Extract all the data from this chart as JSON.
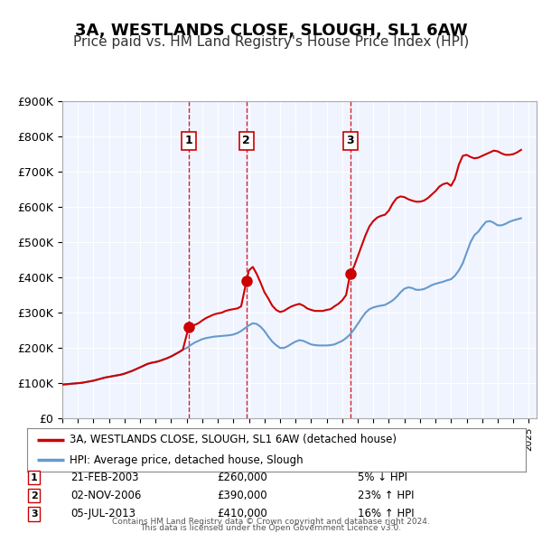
{
  "title": "3A, WESTLANDS CLOSE, SLOUGH, SL1 6AW",
  "subtitle": "Price paid vs. HM Land Registry's House Price Index (HPI)",
  "title_fontsize": 13,
  "subtitle_fontsize": 11,
  "background_color": "#ffffff",
  "plot_bg_color": "#f0f4ff",
  "grid_color": "#ffffff",
  "ylim": [
    0,
    900000
  ],
  "yticks": [
    0,
    100000,
    200000,
    300000,
    400000,
    500000,
    600000,
    700000,
    800000,
    900000
  ],
  "ytick_labels": [
    "£0",
    "£100K",
    "£200K",
    "£300K",
    "£400K",
    "£500K",
    "£600K",
    "£700K",
    "£800K",
    "£900K"
  ],
  "xlim_start": 1995.0,
  "xlim_end": 2025.5,
  "sale_color": "#cc0000",
  "hpi_color": "#6699cc",
  "sale_linewidth": 1.5,
  "hpi_linewidth": 1.5,
  "marker_color": "#cc0000",
  "marker_size": 8,
  "vline_color": "#cc0000",
  "vline_style": "--",
  "purchases": [
    {
      "num": 1,
      "date_label": "21-FEB-2003",
      "year": 2003.13,
      "price": 260000,
      "price_label": "£260,000",
      "pct_label": "5% ↓ HPI"
    },
    {
      "num": 2,
      "date_label": "02-NOV-2006",
      "year": 2006.84,
      "price": 390000,
      "price_label": "£390,000",
      "pct_label": "23% ↑ HPI"
    },
    {
      "num": 3,
      "date_label": "05-JUL-2013",
      "year": 2013.51,
      "price": 410000,
      "price_label": "£410,000",
      "pct_label": "16% ↑ HPI"
    }
  ],
  "legend_line1": "3A, WESTLANDS CLOSE, SLOUGH, SL1 6AW (detached house)",
  "legend_line2": "HPI: Average price, detached house, Slough",
  "footer1": "Contains HM Land Registry data © Crown copyright and database right 2024.",
  "footer2": "This data is licensed under the Open Government Licence v3.0.",
  "hpi_x": [
    1995.0,
    1995.25,
    1995.5,
    1995.75,
    1996.0,
    1996.25,
    1996.5,
    1996.75,
    1997.0,
    1997.25,
    1997.5,
    1997.75,
    1998.0,
    1998.25,
    1998.5,
    1998.75,
    1999.0,
    1999.25,
    1999.5,
    1999.75,
    2000.0,
    2000.25,
    2000.5,
    2000.75,
    2001.0,
    2001.25,
    2001.5,
    2001.75,
    2002.0,
    2002.25,
    2002.5,
    2002.75,
    2003.0,
    2003.25,
    2003.5,
    2003.75,
    2004.0,
    2004.25,
    2004.5,
    2004.75,
    2005.0,
    2005.25,
    2005.5,
    2005.75,
    2006.0,
    2006.25,
    2006.5,
    2006.75,
    2007.0,
    2007.25,
    2007.5,
    2007.75,
    2008.0,
    2008.25,
    2008.5,
    2008.75,
    2009.0,
    2009.25,
    2009.5,
    2009.75,
    2010.0,
    2010.25,
    2010.5,
    2010.75,
    2011.0,
    2011.25,
    2011.5,
    2011.75,
    2012.0,
    2012.25,
    2012.5,
    2012.75,
    2013.0,
    2013.25,
    2013.5,
    2013.75,
    2014.0,
    2014.25,
    2014.5,
    2014.75,
    2015.0,
    2015.25,
    2015.5,
    2015.75,
    2016.0,
    2016.25,
    2016.5,
    2016.75,
    2017.0,
    2017.25,
    2017.5,
    2017.75,
    2018.0,
    2018.25,
    2018.5,
    2018.75,
    2019.0,
    2019.25,
    2019.5,
    2019.75,
    2020.0,
    2020.25,
    2020.5,
    2020.75,
    2021.0,
    2021.25,
    2021.5,
    2021.75,
    2022.0,
    2022.25,
    2022.5,
    2022.75,
    2023.0,
    2023.25,
    2023.5,
    2023.75,
    2024.0,
    2024.25,
    2024.5
  ],
  "hpi_y": [
    96000,
    97000,
    98000,
    99000,
    100000,
    101000,
    103000,
    105000,
    107000,
    110000,
    113000,
    116000,
    118000,
    120000,
    122000,
    124000,
    127000,
    131000,
    135000,
    140000,
    145000,
    150000,
    155000,
    158000,
    160000,
    163000,
    167000,
    171000,
    176000,
    182000,
    188000,
    195000,
    200000,
    208000,
    215000,
    220000,
    225000,
    228000,
    230000,
    232000,
    233000,
    234000,
    235000,
    236000,
    238000,
    242000,
    248000,
    256000,
    264000,
    270000,
    268000,
    260000,
    248000,
    232000,
    218000,
    208000,
    200000,
    200000,
    205000,
    212000,
    218000,
    222000,
    220000,
    215000,
    210000,
    208000,
    207000,
    207000,
    207000,
    208000,
    210000,
    215000,
    220000,
    228000,
    238000,
    252000,
    268000,
    285000,
    300000,
    310000,
    315000,
    318000,
    320000,
    322000,
    328000,
    335000,
    345000,
    358000,
    368000,
    372000,
    370000,
    365000,
    365000,
    367000,
    372000,
    378000,
    382000,
    385000,
    388000,
    392000,
    395000,
    405000,
    420000,
    440000,
    470000,
    500000,
    520000,
    530000,
    545000,
    558000,
    560000,
    555000,
    548000,
    548000,
    552000,
    558000,
    562000,
    565000,
    568000
  ],
  "sale_x": [
    1995.0,
    1995.25,
    1995.5,
    1995.75,
    1996.0,
    1996.25,
    1996.5,
    1996.75,
    1997.0,
    1997.25,
    1997.5,
    1997.75,
    1998.0,
    1998.25,
    1998.5,
    1998.75,
    1999.0,
    1999.25,
    1999.5,
    1999.75,
    2000.0,
    2000.25,
    2000.5,
    2000.75,
    2001.0,
    2001.25,
    2001.5,
    2001.75,
    2002.0,
    2002.25,
    2002.5,
    2002.75,
    2003.13,
    2003.5,
    2003.75,
    2004.0,
    2004.25,
    2004.5,
    2004.75,
    2005.0,
    2005.25,
    2005.5,
    2005.75,
    2006.0,
    2006.25,
    2006.5,
    2006.84,
    2007.0,
    2007.25,
    2007.5,
    2007.75,
    2008.0,
    2008.25,
    2008.5,
    2008.75,
    2009.0,
    2009.25,
    2009.5,
    2009.75,
    2010.0,
    2010.25,
    2010.5,
    2010.75,
    2011.0,
    2011.25,
    2011.5,
    2011.75,
    2012.0,
    2012.25,
    2012.5,
    2012.75,
    2013.0,
    2013.25,
    2013.51,
    2013.75,
    2014.0,
    2014.25,
    2014.5,
    2014.75,
    2015.0,
    2015.25,
    2015.5,
    2015.75,
    2016.0,
    2016.25,
    2016.5,
    2016.75,
    2017.0,
    2017.25,
    2017.5,
    2017.75,
    2018.0,
    2018.25,
    2018.5,
    2018.75,
    2019.0,
    2019.25,
    2019.5,
    2019.75,
    2020.0,
    2020.25,
    2020.5,
    2020.75,
    2021.0,
    2021.25,
    2021.5,
    2021.75,
    2022.0,
    2022.25,
    2022.5,
    2022.75,
    2023.0,
    2023.25,
    2023.5,
    2023.75,
    2024.0,
    2024.25,
    2024.5
  ],
  "sale_y": [
    96000,
    97000,
    98000,
    99000,
    100000,
    101000,
    103000,
    105000,
    107000,
    110000,
    113000,
    116000,
    118000,
    120000,
    122000,
    124000,
    127000,
    131000,
    135000,
    140000,
    145000,
    150000,
    155000,
    158000,
    160000,
    163000,
    167000,
    171000,
    176000,
    182000,
    188000,
    195000,
    260000,
    265000,
    270000,
    278000,
    285000,
    290000,
    295000,
    298000,
    300000,
    305000,
    308000,
    310000,
    312000,
    318000,
    390000,
    420000,
    430000,
    410000,
    385000,
    358000,
    340000,
    320000,
    308000,
    302000,
    305000,
    312000,
    318000,
    322000,
    325000,
    320000,
    312000,
    308000,
    305000,
    305000,
    305000,
    308000,
    310000,
    318000,
    325000,
    335000,
    350000,
    410000,
    430000,
    460000,
    490000,
    520000,
    545000,
    560000,
    570000,
    575000,
    578000,
    590000,
    610000,
    625000,
    630000,
    628000,
    622000,
    618000,
    615000,
    615000,
    618000,
    625000,
    635000,
    645000,
    658000,
    665000,
    668000,
    660000,
    680000,
    720000,
    745000,
    748000,
    742000,
    738000,
    740000,
    745000,
    750000,
    755000,
    760000,
    758000,
    752000,
    748000,
    748000,
    750000,
    755000,
    762000
  ]
}
